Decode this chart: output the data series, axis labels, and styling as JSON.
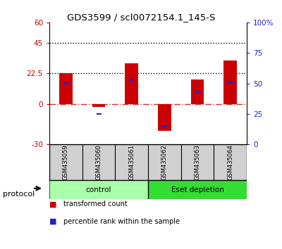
{
  "title": "GDS3599 / scl0072154.1_145-S",
  "categories": [
    "GSM435059",
    "GSM435060",
    "GSM435061",
    "GSM435062",
    "GSM435063",
    "GSM435064"
  ],
  "red_values": [
    22.5,
    -2.5,
    30.0,
    -20.0,
    18.0,
    32.0
  ],
  "blue_values_pct": [
    50.0,
    25.0,
    53.0,
    15.0,
    43.0,
    51.0
  ],
  "left_ylim": [
    -30,
    60
  ],
  "right_ylim": [
    0,
    100
  ],
  "left_yticks": [
    -30,
    0,
    22.5,
    45,
    60
  ],
  "left_yticklabels": [
    "-30",
    "0",
    "22.5",
    "45",
    "60"
  ],
  "right_yticks": [
    0,
    25,
    50,
    75,
    100
  ],
  "right_yticklabels": [
    "0",
    "25",
    "50",
    "75",
    "100%"
  ],
  "hlines": [
    45.0,
    22.5
  ],
  "red_color": "#cc0000",
  "blue_color": "#2222cc",
  "zero_line_color": "#cc3333",
  "protocol_groups": [
    {
      "label": "control",
      "indices": [
        0,
        1,
        2
      ],
      "color": "#aaffaa"
    },
    {
      "label": "Eset depletion",
      "indices": [
        3,
        4,
        5
      ],
      "color": "#33dd33"
    }
  ],
  "sample_box_color": "#d0d0d0",
  "protocol_label": "protocol",
  "legend_items": [
    {
      "color": "#cc0000",
      "label": "transformed count"
    },
    {
      "color": "#2222cc",
      "label": "percentile rank within the sample"
    }
  ],
  "bar_width": 0.4,
  "blue_bar_width": 0.15,
  "background_color": "#ffffff"
}
